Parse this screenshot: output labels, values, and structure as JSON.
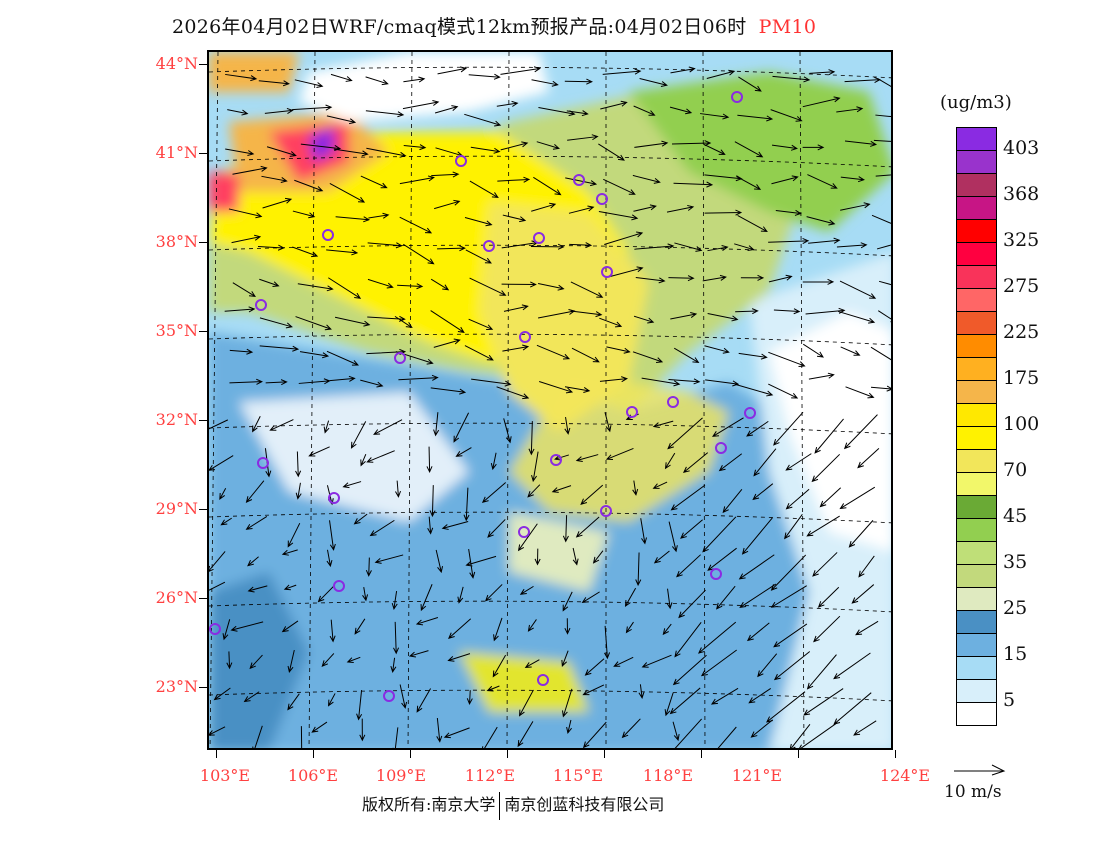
{
  "title": {
    "text": "2026年04月02日WRF/cmaq模式12km预报产品:04月02日06时",
    "pollutant": "PM10"
  },
  "map": {
    "lat_labels": [
      "44°N",
      "41°N",
      "38°N",
      "35°N",
      "32°N",
      "29°N",
      "26°N",
      "23°N"
    ],
    "lon_labels": [
      "103°E",
      "106°E",
      "109°E",
      "112°E",
      "115°E",
      "118°E",
      "121°E",
      "124°E"
    ],
    "wind_reference": "10 m/s"
  },
  "legend": {
    "unit": "(ug/m3)",
    "colors": [
      "#8a2be2",
      "#9933cc",
      "#b03060",
      "#c71585",
      "#ff0000",
      "#ff0040",
      "#f9335a",
      "#ff6666",
      "#f05a2a",
      "#ff8c00",
      "#ffb020",
      "#f5b54a",
      "#ffe800",
      "#fff200",
      "#f2e65a",
      "#f2f76a",
      "#6aaa35",
      "#92cf50",
      "#bfdf78",
      "#c2d97c",
      "#dfeac0",
      "#4a90c4",
      "#6db0e0",
      "#a7dcf5",
      "#d8effa",
      "#ffffff"
    ],
    "labels": [
      "403",
      "368",
      "325",
      "275",
      "225",
      "175",
      "100",
      "70",
      "45",
      "35",
      "25",
      "15",
      "5"
    ]
  },
  "footer": {
    "copyright_left": "版权所有:南京大学",
    "copyright_right": "南京创蓝科技有限公司"
  }
}
